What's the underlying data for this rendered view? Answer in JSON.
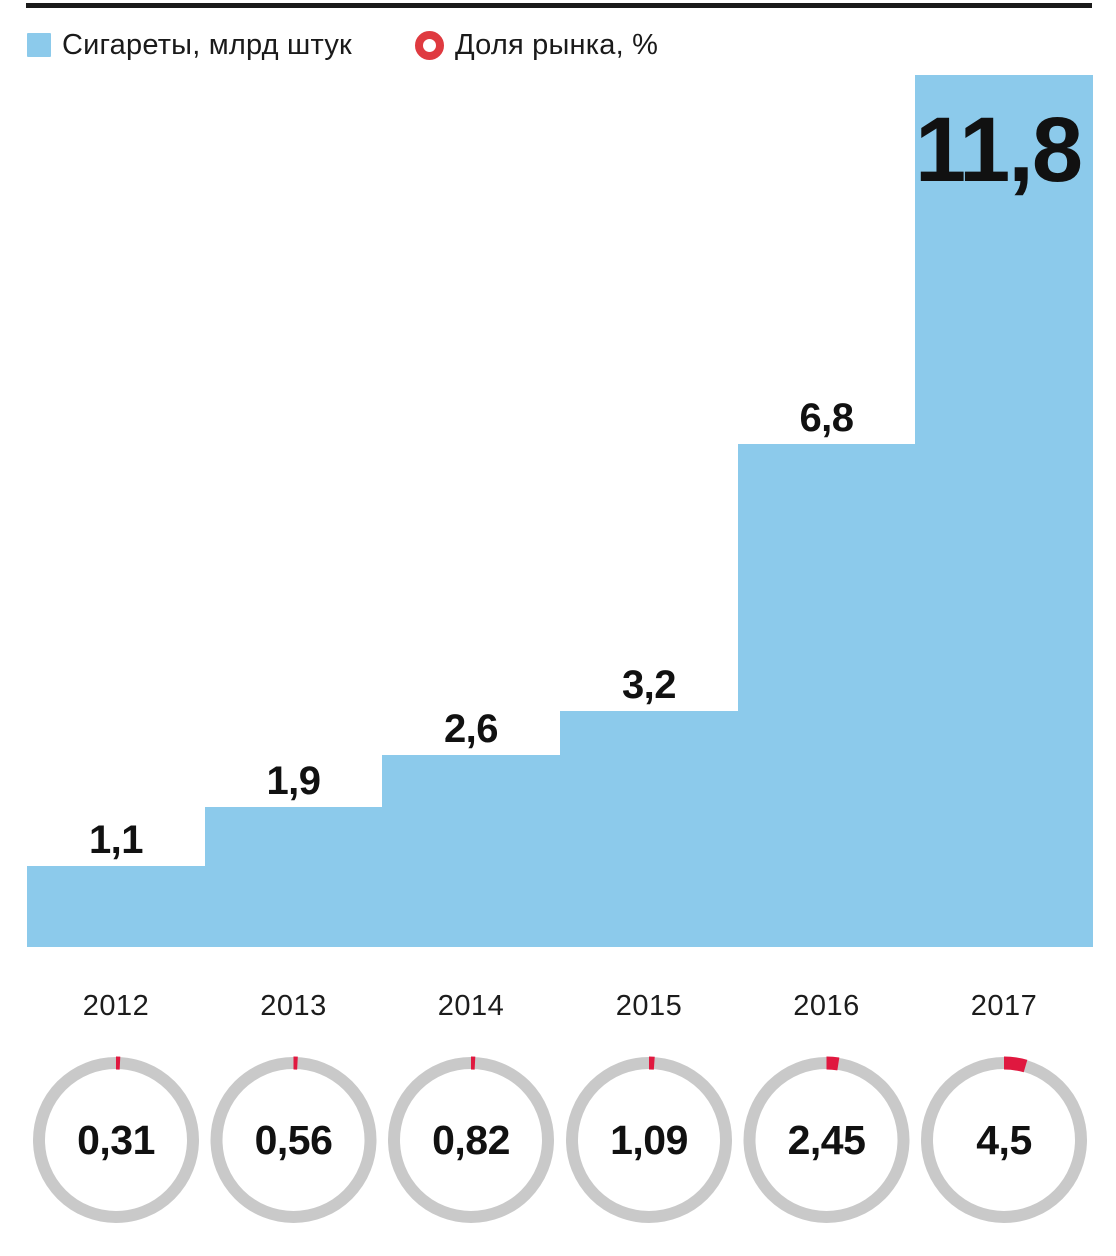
{
  "chart_data": {
    "type": "bar",
    "title": "",
    "categories": [
      "2012",
      "2013",
      "2014",
      "2015",
      "2016",
      "2017"
    ],
    "series": [
      {
        "name": "Сигареты, млрд штук",
        "display": "step-bars",
        "values": [
          1.1,
          1.9,
          2.6,
          3.2,
          6.8,
          11.8
        ],
        "value_labels": [
          "1,1",
          "1,9",
          "2,6",
          "3,2",
          "6,8",
          "11,8"
        ],
        "color": "#8ccaeb"
      },
      {
        "name": "Доля рынка, %",
        "display": "ring-gauges",
        "values": [
          0.31,
          0.56,
          0.82,
          1.09,
          2.45,
          4.5
        ],
        "value_labels": [
          "0,31",
          "0,56",
          "0,82",
          "1,09",
          "2,45",
          "4,5"
        ],
        "gauge_max": 100,
        "color": "#e0183f"
      }
    ],
    "ylim": [
      0,
      11.8
    ],
    "grid": false,
    "legend_position": "top-left"
  },
  "colors": {
    "bar_fill": "#8ccaeb",
    "ring_track": "#c9c9c9",
    "ring_arc": "#e0183f",
    "legend_ring": "#df3a40",
    "text": "#1a1a1a",
    "rule": "#1a1a1a",
    "background": "#ffffff"
  }
}
